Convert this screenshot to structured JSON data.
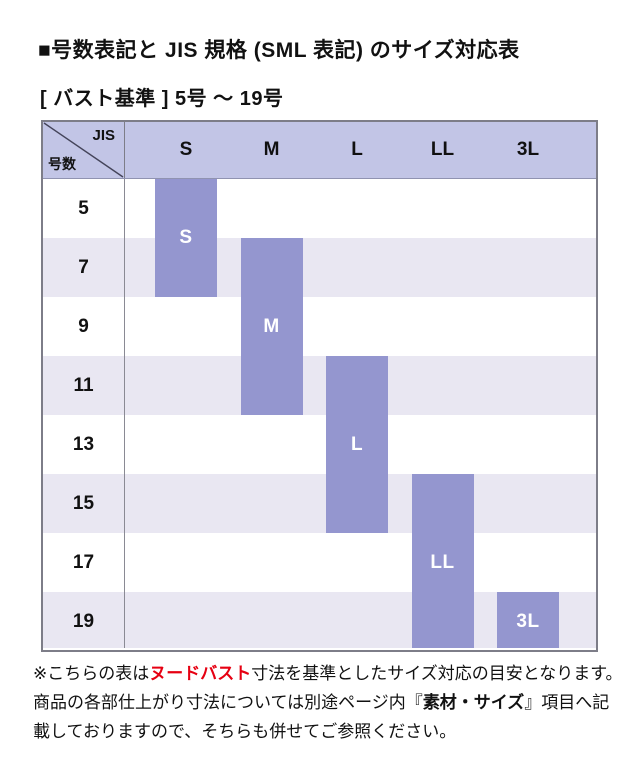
{
  "title": "■号数表記と JIS 規格 (SML 表記) のサイズ対応表",
  "subtitle": "[ バスト基準 ] 5号 ～ 19号",
  "table": {
    "corner": {
      "top_right": "JIS",
      "bottom_left": "号数"
    },
    "columns": [
      "S",
      "M",
      "L",
      "LL",
      "3L"
    ],
    "row_labels": [
      "5",
      "7",
      "9",
      "11",
      "13",
      "15",
      "17",
      "19"
    ]
  },
  "chart_data": {
    "type": "table",
    "title": "号数表記と JIS 規格 (SML 表記) のサイズ対応表",
    "subtitle": "[ バスト基準 ] 5号 ～ 19号",
    "rows": [
      "5",
      "7",
      "9",
      "11",
      "13",
      "15",
      "17",
      "19"
    ],
    "columns": [
      "S",
      "M",
      "L",
      "LL",
      "3L"
    ],
    "bars": [
      {
        "label": "S",
        "col": 0,
        "row_start": 0,
        "row_span": 2,
        "covers": [
          "5",
          "7"
        ]
      },
      {
        "label": "M",
        "col": 1,
        "row_start": 1,
        "row_span": 3,
        "covers": [
          "7",
          "9",
          "11"
        ]
      },
      {
        "label": "L",
        "col": 2,
        "row_start": 3,
        "row_span": 3,
        "covers": [
          "11",
          "13",
          "15"
        ]
      },
      {
        "label": "LL",
        "col": 3,
        "row_start": 5,
        "row_span": 3,
        "covers": [
          "15",
          "17",
          "19"
        ]
      },
      {
        "label": "3L",
        "col": 4,
        "row_start": 7,
        "row_span": 1,
        "covers": [
          "19"
        ]
      }
    ],
    "legend_position": "none",
    "grid": "row-stripes"
  },
  "colors": {
    "header_bg": "#c2c5e6",
    "row_stripe": "#e9e7f2",
    "row_plain": "#ffffff",
    "bar_fill": "#9496cf",
    "bar_label": "#ffffff",
    "table_border": "#7d7d88",
    "divider": "#8a8a94",
    "diagonal": "#44445a",
    "accent_red": "#e60012",
    "text": "#111111"
  },
  "footnote": {
    "lines": [
      [
        {
          "text": "※こちらの表は",
          "style": "normal"
        },
        {
          "text": "ヌードバスト",
          "style": "red-bold"
        },
        {
          "text": "寸法を基準としたサイズ対応の目安となります。",
          "style": "normal"
        }
      ],
      [
        {
          "text": "商品の各部仕上がり寸法については別途ページ内『",
          "style": "normal"
        },
        {
          "text": "素材・サイズ",
          "style": "bold"
        },
        {
          "text": "』項目へ記",
          "style": "normal"
        }
      ],
      [
        {
          "text": "載しておりますので、そちらも併せてご参照ください。",
          "style": "normal"
        }
      ]
    ]
  }
}
